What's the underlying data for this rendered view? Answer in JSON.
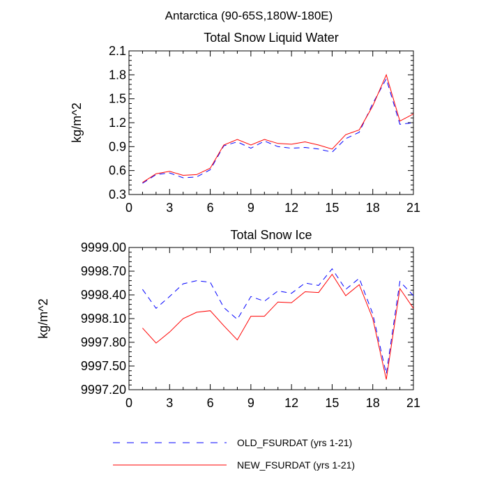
{
  "figure_title": "Antarctica (90-65S,180W-180E)",
  "legend": {
    "entries": [
      {
        "label": "OLD_FSURDAT (yrs 1-21)",
        "color": "#0000ff",
        "dash": "dashed"
      },
      {
        "label": "NEW_FSURDAT (yrs 1-21)",
        "color": "#ff0000",
        "dash": "solid"
      }
    ]
  },
  "chart_data": [
    {
      "type": "line",
      "title": "Total Snow Liquid Water",
      "xlabel": "",
      "ylabel": "kg/m^2",
      "xlim": [
        0,
        21
      ],
      "ylim": [
        0.3,
        2.1
      ],
      "xticks": [
        0,
        3,
        6,
        9,
        12,
        15,
        18,
        21
      ],
      "yticks": [
        0.3,
        0.6,
        0.9,
        1.2,
        1.5,
        1.8,
        2.1
      ],
      "ytick_labels": [
        "0.3",
        "0.6",
        "0.9",
        "1.2",
        "1.5",
        "1.8",
        "2.1"
      ],
      "x": [
        1,
        2,
        3,
        4,
        5,
        6,
        7,
        8,
        9,
        10,
        11,
        12,
        13,
        14,
        15,
        16,
        17,
        18,
        19,
        20,
        21
      ],
      "series": [
        {
          "name": "OLD_FSURDAT (yrs 1-21)",
          "color": "#0000ff",
          "dash": "dashed",
          "values": [
            0.44,
            0.55,
            0.57,
            0.51,
            0.52,
            0.61,
            0.91,
            0.96,
            0.88,
            0.97,
            0.9,
            0.88,
            0.89,
            0.87,
            0.83,
            1.0,
            1.08,
            1.44,
            1.75,
            1.18,
            1.2
          ]
        },
        {
          "name": "NEW_FSURDAT (yrs 1-21)",
          "color": "#ff0000",
          "dash": "solid",
          "values": [
            0.45,
            0.56,
            0.59,
            0.54,
            0.55,
            0.63,
            0.92,
            0.99,
            0.92,
            0.99,
            0.94,
            0.93,
            0.96,
            0.92,
            0.87,
            1.05,
            1.11,
            1.41,
            1.8,
            1.22,
            1.31
          ]
        }
      ]
    },
    {
      "type": "line",
      "title": "Total Snow Ice",
      "xlabel": "",
      "ylabel": "kg/m^2",
      "xlim": [
        0,
        21
      ],
      "ylim": [
        9997.2,
        9999.0
      ],
      "xticks": [
        0,
        3,
        6,
        9,
        12,
        15,
        18,
        21
      ],
      "yticks": [
        9997.2,
        9997.5,
        9997.8,
        9998.1,
        9998.4,
        9998.7,
        9999.0
      ],
      "ytick_labels": [
        "9997.20",
        "9997.50",
        "9997.80",
        "9998.10",
        "9998.40",
        "9998.70",
        "9999.00"
      ],
      "x": [
        1,
        2,
        3,
        4,
        5,
        6,
        7,
        8,
        9,
        10,
        11,
        12,
        13,
        14,
        15,
        16,
        17,
        18,
        19,
        20,
        21
      ],
      "series": [
        {
          "name": "OLD_FSURDAT (yrs 1-21)",
          "color": "#0000ff",
          "dash": "dashed",
          "values": [
            9998.47,
            9998.23,
            9998.38,
            9998.54,
            9998.58,
            9998.56,
            9998.24,
            9998.09,
            9998.38,
            9998.32,
            9998.45,
            9998.42,
            9998.55,
            9998.52,
            9998.73,
            9998.47,
            9998.61,
            9998.16,
            9997.4,
            9998.57,
            9998.39
          ]
        },
        {
          "name": "NEW_FSURDAT (yrs 1-21)",
          "color": "#ff0000",
          "dash": "solid",
          "values": [
            9997.98,
            9997.79,
            9997.93,
            9998.1,
            9998.18,
            9998.2,
            9998.01,
            9997.83,
            9998.13,
            9998.13,
            9998.31,
            9998.3,
            9998.44,
            9998.43,
            9998.66,
            9998.39,
            9998.53,
            9998.1,
            9997.33,
            9998.48,
            9998.23
          ]
        }
      ]
    }
  ]
}
